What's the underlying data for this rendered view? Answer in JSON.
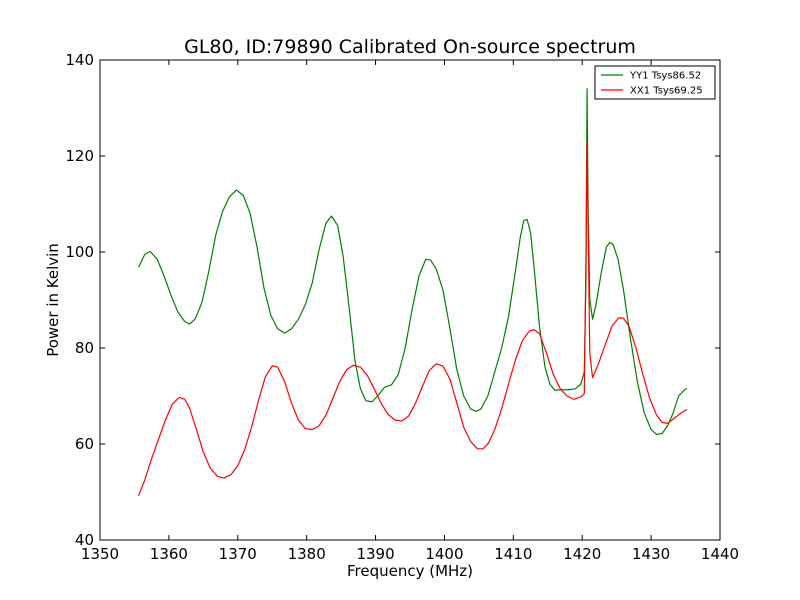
{
  "chart_data": {
    "type": "line",
    "title": "GL80, ID:79890 Calibrated On-source spectrum",
    "xlabel": "Frequency (MHz)",
    "ylabel": "Power in Kelvin",
    "xlim": [
      1350,
      1440
    ],
    "ylim": [
      40,
      140
    ],
    "xticks": [
      1350,
      1360,
      1370,
      1380,
      1390,
      1400,
      1410,
      1420,
      1430,
      1440
    ],
    "yticks": [
      40,
      60,
      80,
      100,
      120,
      140
    ],
    "grid": false,
    "legend_position": "top-right",
    "series": [
      {
        "name": "YY1 Tsys86.52",
        "color": "#008000",
        "points": [
          [
            1355.6,
            96.8
          ],
          [
            1356.5,
            99.5
          ],
          [
            1357.3,
            100.1
          ],
          [
            1358.3,
            98.5
          ],
          [
            1359.3,
            95.0
          ],
          [
            1360.3,
            91.0
          ],
          [
            1361.3,
            87.5
          ],
          [
            1362.3,
            85.5
          ],
          [
            1363.0,
            85.0
          ],
          [
            1363.8,
            86.0
          ],
          [
            1364.8,
            89.5
          ],
          [
            1365.8,
            96.0
          ],
          [
            1366.8,
            103.5
          ],
          [
            1367.8,
            108.5
          ],
          [
            1368.8,
            111.5
          ],
          [
            1369.8,
            112.9
          ],
          [
            1370.8,
            111.8
          ],
          [
            1371.8,
            108.0
          ],
          [
            1372.8,
            101.0
          ],
          [
            1373.8,
            92.5
          ],
          [
            1374.8,
            86.8
          ],
          [
            1375.8,
            84.0
          ],
          [
            1376.8,
            83.1
          ],
          [
            1377.8,
            84.0
          ],
          [
            1378.8,
            86.0
          ],
          [
            1379.8,
            89.0
          ],
          [
            1380.8,
            93.5
          ],
          [
            1381.8,
            100.5
          ],
          [
            1382.8,
            106.0
          ],
          [
            1383.6,
            107.5
          ],
          [
            1384.5,
            105.5
          ],
          [
            1385.3,
            99.0
          ],
          [
            1386.2,
            88.0
          ],
          [
            1387.0,
            77.5
          ],
          [
            1387.8,
            71.5
          ],
          [
            1388.6,
            69.0
          ],
          [
            1389.5,
            68.8
          ],
          [
            1390.3,
            70.0
          ],
          [
            1391.3,
            71.8
          ],
          [
            1392.3,
            72.3
          ],
          [
            1393.3,
            74.5
          ],
          [
            1394.3,
            80.0
          ],
          [
            1395.3,
            88.0
          ],
          [
            1396.3,
            95.0
          ],
          [
            1397.3,
            98.5
          ],
          [
            1398.0,
            98.3
          ],
          [
            1398.8,
            96.5
          ],
          [
            1399.8,
            92.0
          ],
          [
            1400.8,
            84.0
          ],
          [
            1401.8,
            75.5
          ],
          [
            1402.8,
            70.0
          ],
          [
            1403.8,
            67.3
          ],
          [
            1404.6,
            66.8
          ],
          [
            1405.3,
            67.3
          ],
          [
            1406.3,
            70.0
          ],
          [
            1407.3,
            75.0
          ],
          [
            1408.3,
            80.0
          ],
          [
            1409.3,
            86.5
          ],
          [
            1410.3,
            96.0
          ],
          [
            1411.0,
            103.0
          ],
          [
            1411.5,
            106.5
          ],
          [
            1412.0,
            106.8
          ],
          [
            1412.5,
            104.0
          ],
          [
            1413.0,
            97.0
          ],
          [
            1413.8,
            84.5
          ],
          [
            1414.6,
            76.0
          ],
          [
            1415.3,
            72.5
          ],
          [
            1416.0,
            71.2
          ],
          [
            1417.0,
            71.3
          ],
          [
            1418.0,
            71.3
          ],
          [
            1419.0,
            71.5
          ],
          [
            1419.8,
            72.5
          ],
          [
            1420.3,
            75.0
          ],
          [
            1420.55,
            95.0
          ],
          [
            1420.7,
            134.0
          ],
          [
            1420.85,
            110.0
          ],
          [
            1421.1,
            90.0
          ],
          [
            1421.5,
            86.0
          ],
          [
            1422.0,
            89.0
          ],
          [
            1422.8,
            96.0
          ],
          [
            1423.5,
            101.0
          ],
          [
            1424.0,
            102.0
          ],
          [
            1424.5,
            101.5
          ],
          [
            1425.2,
            98.5
          ],
          [
            1426.0,
            92.0
          ],
          [
            1427.0,
            82.0
          ],
          [
            1428.0,
            73.0
          ],
          [
            1429.0,
            66.5
          ],
          [
            1430.0,
            63.0
          ],
          [
            1430.8,
            62.0
          ],
          [
            1431.6,
            62.2
          ],
          [
            1432.4,
            63.8
          ],
          [
            1433.2,
            66.5
          ],
          [
            1434.0,
            70.0
          ],
          [
            1434.8,
            71.2
          ],
          [
            1435.2,
            71.6
          ]
        ]
      },
      {
        "name": "XX1 Tsys69.25",
        "color": "#ff0000",
        "points": [
          [
            1355.6,
            49.2
          ],
          [
            1356.5,
            52.5
          ],
          [
            1357.5,
            57.0
          ],
          [
            1358.5,
            61.0
          ],
          [
            1359.5,
            65.0
          ],
          [
            1360.5,
            68.3
          ],
          [
            1361.5,
            69.7
          ],
          [
            1362.3,
            69.3
          ],
          [
            1363.0,
            67.5
          ],
          [
            1364.0,
            63.0
          ],
          [
            1365.0,
            58.3
          ],
          [
            1366.0,
            55.0
          ],
          [
            1367.0,
            53.3
          ],
          [
            1368.0,
            52.9
          ],
          [
            1369.0,
            53.6
          ],
          [
            1370.0,
            55.5
          ],
          [
            1371.0,
            58.8
          ],
          [
            1372.0,
            63.5
          ],
          [
            1373.0,
            69.0
          ],
          [
            1374.0,
            74.0
          ],
          [
            1375.0,
            76.3
          ],
          [
            1375.8,
            76.0
          ],
          [
            1376.8,
            73.0
          ],
          [
            1377.8,
            68.5
          ],
          [
            1378.8,
            65.0
          ],
          [
            1379.8,
            63.2
          ],
          [
            1380.8,
            63.0
          ],
          [
            1381.8,
            63.8
          ],
          [
            1382.8,
            66.0
          ],
          [
            1383.8,
            69.5
          ],
          [
            1384.8,
            73.0
          ],
          [
            1385.8,
            75.5
          ],
          [
            1386.8,
            76.4
          ],
          [
            1387.8,
            76.0
          ],
          [
            1388.8,
            74.3
          ],
          [
            1389.8,
            71.5
          ],
          [
            1390.8,
            68.5
          ],
          [
            1391.8,
            66.2
          ],
          [
            1392.8,
            65.0
          ],
          [
            1393.8,
            64.8
          ],
          [
            1394.8,
            65.8
          ],
          [
            1395.8,
            68.5
          ],
          [
            1396.8,
            72.0
          ],
          [
            1397.8,
            75.3
          ],
          [
            1398.8,
            76.7
          ],
          [
            1399.8,
            76.2
          ],
          [
            1400.8,
            73.5
          ],
          [
            1401.8,
            68.5
          ],
          [
            1402.8,
            63.5
          ],
          [
            1403.8,
            60.5
          ],
          [
            1404.8,
            59.0
          ],
          [
            1405.6,
            59.0
          ],
          [
            1406.4,
            60.2
          ],
          [
            1407.3,
            63.0
          ],
          [
            1408.3,
            67.3
          ],
          [
            1409.3,
            72.5
          ],
          [
            1410.3,
            77.5
          ],
          [
            1411.3,
            81.5
          ],
          [
            1412.3,
            83.5
          ],
          [
            1413.0,
            83.8
          ],
          [
            1413.8,
            83.0
          ],
          [
            1414.8,
            79.0
          ],
          [
            1415.8,
            74.5
          ],
          [
            1416.8,
            71.5
          ],
          [
            1417.8,
            70.0
          ],
          [
            1418.8,
            69.3
          ],
          [
            1419.8,
            69.8
          ],
          [
            1420.3,
            70.5
          ],
          [
            1420.55,
            100.0
          ],
          [
            1420.7,
            123.0
          ],
          [
            1420.85,
            105.0
          ],
          [
            1421.1,
            79.0
          ],
          [
            1421.5,
            73.8
          ],
          [
            1422.3,
            76.5
          ],
          [
            1423.3,
            80.5
          ],
          [
            1424.3,
            84.5
          ],
          [
            1425.3,
            86.3
          ],
          [
            1426.0,
            86.2
          ],
          [
            1426.8,
            84.5
          ],
          [
            1427.8,
            80.0
          ],
          [
            1428.8,
            74.5
          ],
          [
            1429.8,
            69.5
          ],
          [
            1430.8,
            66.0
          ],
          [
            1431.6,
            64.5
          ],
          [
            1432.4,
            64.3
          ],
          [
            1433.2,
            65.2
          ],
          [
            1434.2,
            66.3
          ],
          [
            1435.2,
            67.2
          ]
        ]
      }
    ]
  }
}
